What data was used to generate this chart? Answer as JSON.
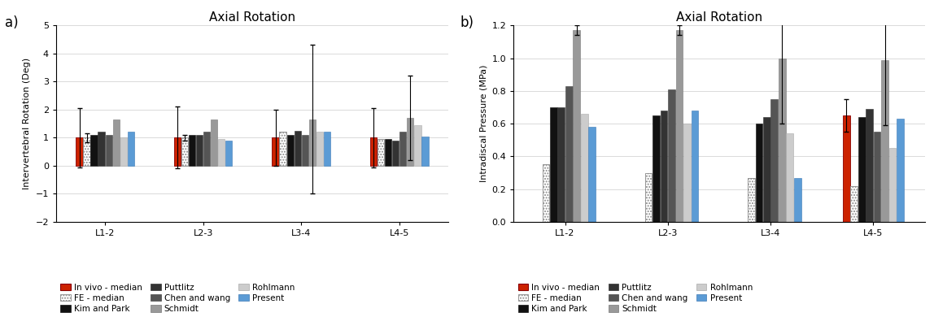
{
  "title_a": "Axial Rotation",
  "title_b": "Axial Rotation",
  "ylabel_a": "Intervertebral Rotation (Deg)",
  "ylabel_b": "Intradiscal Pressure (MPa)",
  "groups": [
    "L1-2",
    "L2-3",
    "L3-4",
    "L4-5"
  ],
  "series_labels": [
    "In vivo - median",
    "FE - median",
    "Kim and Park",
    "Puttlitz",
    "Chen and wang",
    "Schmidt",
    "Rohlmann",
    "Present"
  ],
  "label_a": "a)",
  "label_b": "b)",
  "ylim_a": [
    -2,
    5
  ],
  "ylim_b": [
    0.0,
    1.2
  ],
  "yticks_a": [
    -2,
    -1,
    0,
    1,
    2,
    3,
    4,
    5
  ],
  "yticks_b": [
    0.0,
    0.2,
    0.4,
    0.6,
    0.8,
    1.0,
    1.2
  ],
  "bar_colors": [
    "#cc2200",
    "#e8e8e8",
    "#111111",
    "#333333",
    "#555555",
    "#999999",
    "#cccccc",
    "#5b9bd5"
  ],
  "bar_edgecolors": [
    "#880000",
    "#888888",
    "#111111",
    "#333333",
    "#444444",
    "#777777",
    "#aaaaaa",
    "#3a78b5"
  ],
  "bar_hatches": [
    "",
    ".....",
    "",
    "",
    "",
    "",
    "",
    ""
  ],
  "values_a": {
    "L1-2": [
      1.0,
      1.0,
      1.1,
      1.2,
      1.1,
      1.65,
      1.0,
      1.2
    ],
    "L2-3": [
      1.0,
      1.0,
      1.1,
      1.1,
      1.2,
      1.65,
      0.95,
      0.9
    ],
    "L3-4": [
      1.0,
      1.2,
      1.1,
      1.25,
      1.1,
      1.65,
      1.2,
      1.2
    ],
    "L4-5": [
      1.0,
      0.95,
      0.95,
      0.9,
      1.2,
      1.7,
      1.45,
      1.05
    ]
  },
  "errors_a_lo": {
    "L1-2": [
      1.05,
      0.15,
      0.0,
      0.0,
      0.0,
      0.0,
      0.0,
      0.0
    ],
    "L2-3": [
      1.1,
      0.1,
      0.0,
      0.0,
      0.0,
      0.0,
      0.0,
      0.0
    ],
    "L3-4": [
      1.0,
      0.0,
      0.0,
      0.0,
      0.0,
      2.65,
      0.0,
      0.0
    ],
    "L4-5": [
      1.05,
      0.0,
      0.0,
      0.0,
      0.0,
      1.5,
      0.0,
      0.0
    ]
  },
  "errors_a_hi": {
    "L1-2": [
      1.05,
      0.15,
      0.0,
      0.0,
      0.0,
      0.0,
      0.0,
      0.0
    ],
    "L2-3": [
      1.1,
      0.1,
      0.0,
      0.0,
      0.0,
      0.0,
      0.0,
      0.0
    ],
    "L3-4": [
      1.0,
      0.0,
      0.0,
      0.0,
      0.0,
      2.65,
      0.0,
      0.0
    ],
    "L4-5": [
      1.05,
      0.0,
      0.0,
      0.0,
      0.0,
      1.5,
      0.0,
      0.0
    ]
  },
  "values_b": {
    "L1-2": [
      0.0,
      0.35,
      0.7,
      0.7,
      0.83,
      1.17,
      0.66,
      0.58
    ],
    "L2-3": [
      0.0,
      0.3,
      0.65,
      0.68,
      0.81,
      1.17,
      0.6,
      0.68
    ],
    "L3-4": [
      0.0,
      0.27,
      0.6,
      0.64,
      0.75,
      1.0,
      0.54,
      0.27
    ],
    "L4-5": [
      0.65,
      0.22,
      0.64,
      0.69,
      0.55,
      0.99,
      0.45,
      0.63
    ]
  },
  "errors_b_lo": {
    "L1-2": [
      0.0,
      0.0,
      0.0,
      0.0,
      0.0,
      0.03,
      0.0,
      0.0
    ],
    "L2-3": [
      0.0,
      0.0,
      0.0,
      0.0,
      0.0,
      0.03,
      0.0,
      0.0
    ],
    "L3-4": [
      0.0,
      0.0,
      0.0,
      0.0,
      0.0,
      0.4,
      0.0,
      0.0
    ],
    "L4-5": [
      0.1,
      0.0,
      0.0,
      0.0,
      0.0,
      0.4,
      0.0,
      0.0
    ]
  },
  "errors_b_hi": {
    "L1-2": [
      0.0,
      0.0,
      0.0,
      0.0,
      0.0,
      0.03,
      0.0,
      0.0
    ],
    "L2-3": [
      0.0,
      0.0,
      0.0,
      0.0,
      0.0,
      0.03,
      0.0,
      0.0
    ],
    "L3-4": [
      0.0,
      0.0,
      0.0,
      0.0,
      0.0,
      0.4,
      0.0,
      0.0
    ],
    "L4-5": [
      0.1,
      0.0,
      0.0,
      0.0,
      0.0,
      0.4,
      0.0,
      0.0
    ]
  }
}
